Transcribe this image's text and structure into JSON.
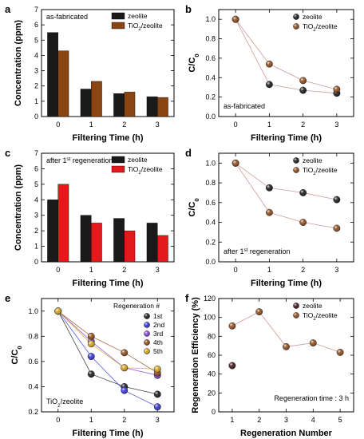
{
  "chart_data": [
    {
      "panel": "a",
      "type": "bar",
      "categories": [
        "0",
        "1",
        "2",
        "3"
      ],
      "series": [
        {
          "name": "zeolite",
          "values": [
            5.5,
            1.8,
            1.5,
            1.3
          ],
          "color": "#1a1a1a"
        },
        {
          "name": "TiO2/zeolite",
          "name_main": "TiO",
          "name_sub": "2",
          "name_tail": "/zeolite",
          "values": [
            4.3,
            2.3,
            1.6,
            1.25
          ],
          "color": "#8b4513"
        }
      ],
      "annotation": "as-fabricated",
      "xlabel": "Filtering Time (h)",
      "ylabel": "Concentration (ppm)",
      "ylim": [
        0,
        7
      ],
      "yticks": [
        0,
        1,
        2,
        3,
        4,
        5,
        6,
        7
      ],
      "legend_position": "top-right",
      "grid": false
    },
    {
      "panel": "b",
      "type": "line",
      "x": [
        0,
        1,
        2,
        3
      ],
      "series": [
        {
          "name": "zeolite",
          "values": [
            1.0,
            0.33,
            0.27,
            0.24
          ],
          "color": "#111111"
        },
        {
          "name": "TiO2/zeolite",
          "name_main": "TiO",
          "name_sub": "2",
          "name_tail": "/zeolite",
          "values": [
            1.0,
            0.54,
            0.37,
            0.28
          ],
          "color": "#8b4513"
        }
      ],
      "annotation": "as-fabricated",
      "xlabel": "Filtering Time (h)",
      "ylabel_main": "C/C",
      "ylabel_sub": "0",
      "xlim": [
        -0.5,
        3.5
      ],
      "ylim": [
        0.0,
        1.1
      ],
      "yticks": [
        "0.0",
        "0.2",
        "0.4",
        "0.6",
        "0.8",
        "1.0"
      ],
      "xticks": [
        "0",
        "1",
        "2",
        "3"
      ],
      "legend_position": "top-right",
      "grid": false
    },
    {
      "panel": "c",
      "type": "bar",
      "categories": [
        "0",
        "1",
        "2",
        "3"
      ],
      "series": [
        {
          "name": "zeolite",
          "values": [
            4.0,
            3.0,
            2.8,
            2.5
          ],
          "color": "#1a1a1a"
        },
        {
          "name": "TiO2/zeolite",
          "name_main": "TiO",
          "name_sub": "2",
          "name_tail": "/zeolite",
          "values": [
            5.0,
            2.5,
            2.0,
            1.7
          ],
          "color": "#e31a1c"
        }
      ],
      "annotation_main": "after 1",
      "annotation_sup": "st",
      "annotation_tail": " regeneration",
      "xlabel": "Filtering Time (h)",
      "ylabel": "Concentration (ppm)",
      "ylim": [
        0,
        7
      ],
      "yticks": [
        0,
        1,
        2,
        3,
        4,
        5,
        6,
        7
      ],
      "legend_position": "top-right",
      "grid": false
    },
    {
      "panel": "d",
      "type": "line",
      "x": [
        0,
        1,
        2,
        3
      ],
      "series": [
        {
          "name": "zeolite",
          "values": [
            1.0,
            0.75,
            0.7,
            0.63
          ],
          "color": "#111111"
        },
        {
          "name": "TiO2/zeolite",
          "name_main": "TiO",
          "name_sub": "2",
          "name_tail": "/zeolite",
          "values": [
            1.0,
            0.5,
            0.4,
            0.34
          ],
          "color": "#8b4513"
        }
      ],
      "annotation_main": "after 1",
      "annotation_sup": "st",
      "annotation_tail": " regeneration",
      "xlabel": "Filtering Time (h)",
      "ylabel_main": "C/C",
      "ylabel_sub": "0",
      "xlim": [
        -0.5,
        3.5
      ],
      "ylim": [
        0.0,
        1.1
      ],
      "yticks": [
        "0.0",
        "0.2",
        "0.4",
        "0.6",
        "0.8",
        "1.0"
      ],
      "xticks": [
        "0",
        "1",
        "2",
        "3"
      ],
      "legend_position": "top-right",
      "grid": false
    },
    {
      "panel": "e",
      "type": "line",
      "x": [
        0,
        1,
        2,
        3
      ],
      "series": [
        {
          "name": "1st",
          "values": [
            1.0,
            0.5,
            0.4,
            0.34
          ],
          "color": "#111111"
        },
        {
          "name": "2nd",
          "values": [
            1.0,
            0.64,
            0.37,
            0.24
          ],
          "color": "#2b2bd6"
        },
        {
          "name": "3rd",
          "values": [
            1.0,
            0.76,
            0.55,
            0.49
          ],
          "color": "#7a3fd0"
        },
        {
          "name": "4th",
          "values": [
            1.0,
            0.8,
            0.67,
            0.51
          ],
          "color": "#8b4513"
        },
        {
          "name": "5th",
          "values": [
            1.0,
            0.74,
            0.55,
            0.54
          ],
          "color": "#d4a017"
        }
      ],
      "legend_title": "Regeneration #",
      "annotation": "TiO2/zeolite",
      "annotation_main": "TiO",
      "annotation_sub": "2",
      "annotation_tail": "/zeolite",
      "xlabel": "Filtering Time (h)",
      "ylabel_main": "C/C",
      "ylabel_sub": "0",
      "xlim": [
        -0.5,
        3.5
      ],
      "ylim": [
        0.2,
        1.1
      ],
      "yticks": [
        "0.2",
        "0.4",
        "0.6",
        "0.8",
        "1.0"
      ],
      "xticks": [
        "0",
        "1",
        "2",
        "3"
      ],
      "legend_position": "top-right",
      "grid": false
    },
    {
      "panel": "f",
      "type": "scatter",
      "x": [
        1,
        2,
        3,
        4,
        5
      ],
      "series": [
        {
          "name": "zeolite",
          "points": [
            [
              1,
              49
            ]
          ],
          "color": "#3a0a14"
        },
        {
          "name": "TiO2/zeolite",
          "name_main": "TiO",
          "name_sub": "2",
          "name_tail": "/zeolite",
          "points": [
            [
              1,
              91
            ],
            [
              2,
              106
            ],
            [
              3,
              69
            ],
            [
              4,
              73
            ],
            [
              5,
              63
            ]
          ],
          "color": "#8b4513"
        }
      ],
      "annotation": "Regeneration time : 3 h",
      "xlabel": "Regeneration Number",
      "ylabel": "Regeneration Efficiency (%)",
      "xlim": [
        0.5,
        5.5
      ],
      "ylim": [
        0,
        120
      ],
      "yticks": [
        0,
        20,
        40,
        60,
        80,
        100,
        120
      ],
      "xticks": [
        "1",
        "2",
        "3",
        "4",
        "5"
      ],
      "legend_position": "top-right",
      "grid": false
    }
  ]
}
